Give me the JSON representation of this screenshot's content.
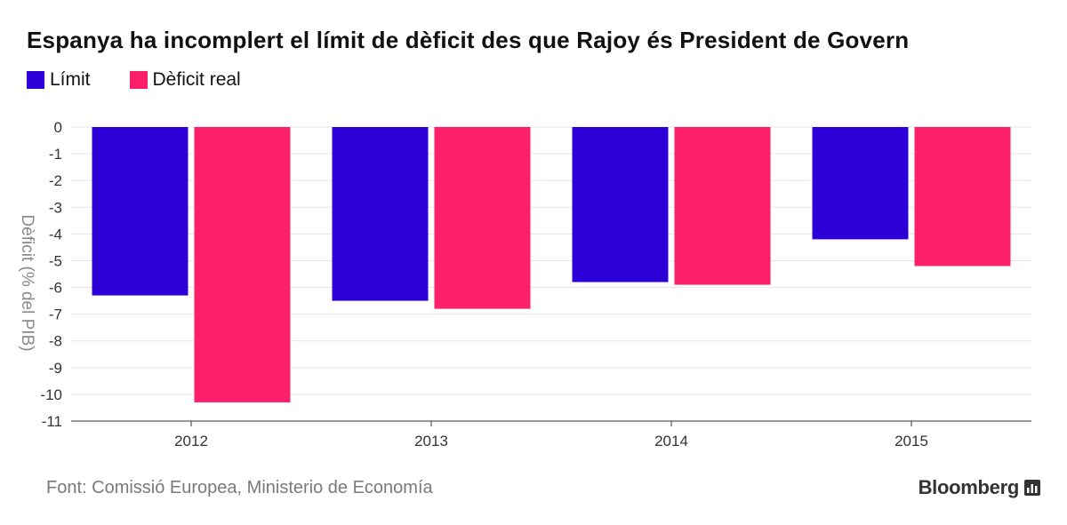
{
  "title": "Espanya ha incomplert el límit de dèficit des que Rajoy és President de Govern",
  "legend": [
    {
      "label": "Límit",
      "color": "#2d00d8"
    },
    {
      "label": "Dèficit real",
      "color": "#fc1f69"
    }
  ],
  "source": "Font: Comissió Europea, Ministerio de Economía",
  "brand": {
    "name": "Bloomberg",
    "icon": "bloomberg-chart-icon"
  },
  "chart_data": {
    "type": "bar",
    "title": "Espanya ha incomplert el límit de dèficit des que Rajoy és President de Govern",
    "categories": [
      "2012",
      "2013",
      "2014",
      "2015"
    ],
    "series": [
      {
        "name": "Límit",
        "color": "#2d00d8",
        "values": [
          -6.3,
          -6.5,
          -5.8,
          -4.2
        ]
      },
      {
        "name": "Dèficit real",
        "color": "#fc1f69",
        "values": [
          -10.3,
          -6.8,
          -5.9,
          -5.2
        ]
      }
    ],
    "xlabel": "",
    "ylabel": "Dèficit (% del PIB)",
    "ylim": [
      -11,
      0
    ],
    "yticks": [
      0,
      -1,
      -2,
      -3,
      -4,
      -5,
      -6,
      -7,
      -8,
      -9,
      -10,
      -11
    ],
    "grid": true,
    "legend_position": "top-left"
  }
}
